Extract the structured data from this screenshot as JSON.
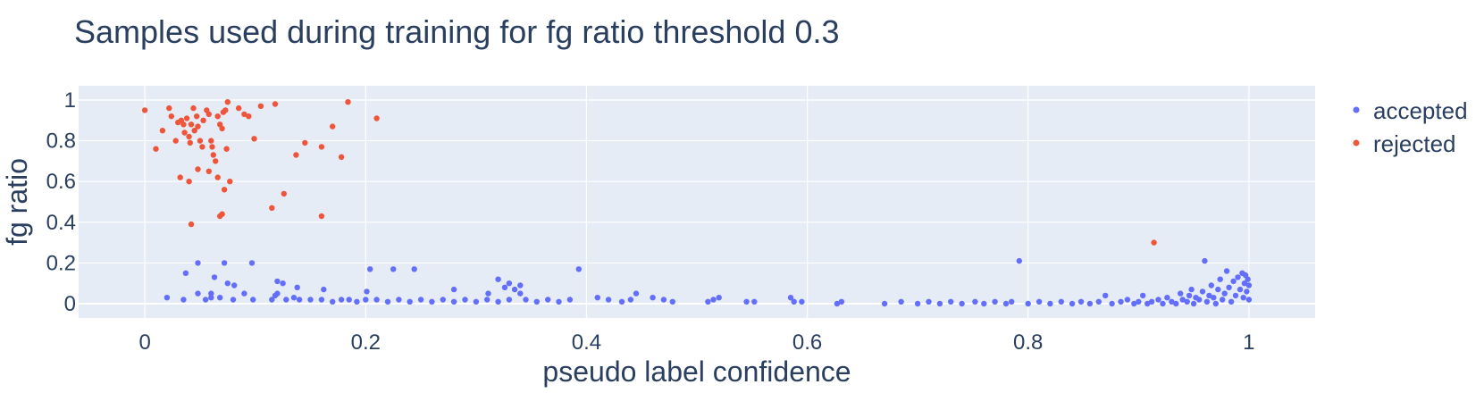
{
  "chart_data": {
    "type": "scatter",
    "title": "Samples used during training for fg ratio threshold 0.3",
    "xlabel": "pseudo label confidence",
    "ylabel": "fg ratio",
    "xlim": [
      -0.06,
      1.06
    ],
    "ylim": [
      -0.07,
      1.07
    ],
    "x_ticks": [
      0,
      0.2,
      0.4,
      0.6,
      0.8,
      1
    ],
    "x_tick_labels": [
      "0",
      "0.2",
      "0.4",
      "0.6",
      "0.8",
      "1"
    ],
    "y_ticks": [
      0,
      0.2,
      0.4,
      0.6,
      0.8,
      1
    ],
    "y_tick_labels": [
      "0",
      "0.2",
      "0.4",
      "0.6",
      "0.8",
      "1"
    ],
    "grid": true,
    "legend_position": "top-right",
    "plot_background": "#e5ecf6",
    "series": [
      {
        "name": "accepted",
        "color": "#636efa",
        "points": [
          [
            0.048,
            0.2
          ],
          [
            0.072,
            0.2
          ],
          [
            0.097,
            0.2
          ],
          [
            0.204,
            0.17
          ],
          [
            0.225,
            0.17
          ],
          [
            0.244,
            0.17
          ],
          [
            0.393,
            0.17
          ],
          [
            0.037,
            0.15
          ],
          [
            0.063,
            0.13
          ],
          [
            0.075,
            0.1
          ],
          [
            0.081,
            0.09
          ],
          [
            0.12,
            0.11
          ],
          [
            0.125,
            0.1
          ],
          [
            0.138,
            0.08
          ],
          [
            0.162,
            0.07
          ],
          [
            0.201,
            0.06
          ],
          [
            0.048,
            0.05
          ],
          [
            0.06,
            0.05
          ],
          [
            0.09,
            0.05
          ],
          [
            0.12,
            0.05
          ],
          [
            0.28,
            0.07
          ],
          [
            0.32,
            0.12
          ],
          [
            0.33,
            0.1
          ],
          [
            0.34,
            0.09
          ],
          [
            0.326,
            0.08
          ],
          [
            0.335,
            0.07
          ],
          [
            0.311,
            0.05
          ],
          [
            0.34,
            0.05
          ],
          [
            0.445,
            0.05
          ],
          [
            0.02,
            0.03
          ],
          [
            0.035,
            0.02
          ],
          [
            0.055,
            0.02
          ],
          [
            0.06,
            0.03
          ],
          [
            0.068,
            0.03
          ],
          [
            0.08,
            0.02
          ],
          [
            0.098,
            0.02
          ],
          [
            0.115,
            0.02
          ],
          [
            0.118,
            0.04
          ],
          [
            0.128,
            0.02
          ],
          [
            0.135,
            0.03
          ],
          [
            0.14,
            0.02
          ],
          [
            0.15,
            0.02
          ],
          [
            0.16,
            0.02
          ],
          [
            0.17,
            0.01
          ],
          [
            0.178,
            0.02
          ],
          [
            0.185,
            0.02
          ],
          [
            0.192,
            0.01
          ],
          [
            0.2,
            0.02
          ],
          [
            0.21,
            0.02
          ],
          [
            0.22,
            0.01
          ],
          [
            0.23,
            0.02
          ],
          [
            0.24,
            0.01
          ],
          [
            0.25,
            0.02
          ],
          [
            0.26,
            0.01
          ],
          [
            0.27,
            0.02
          ],
          [
            0.28,
            0.01
          ],
          [
            0.29,
            0.02
          ],
          [
            0.3,
            0.01
          ],
          [
            0.31,
            0.02
          ],
          [
            0.32,
            0.01
          ],
          [
            0.33,
            0.02
          ],
          [
            0.345,
            0.02
          ],
          [
            0.355,
            0.01
          ],
          [
            0.365,
            0.02
          ],
          [
            0.375,
            0.01
          ],
          [
            0.385,
            0.02
          ],
          [
            0.41,
            0.03
          ],
          [
            0.42,
            0.02
          ],
          [
            0.432,
            0.01
          ],
          [
            0.44,
            0.02
          ],
          [
            0.46,
            0.03
          ],
          [
            0.47,
            0.02
          ],
          [
            0.478,
            0.01
          ],
          [
            0.51,
            0.01
          ],
          [
            0.515,
            0.02
          ],
          [
            0.52,
            0.03
          ],
          [
            0.545,
            0.01
          ],
          [
            0.552,
            0.01
          ],
          [
            0.585,
            0.03
          ],
          [
            0.588,
            0.01
          ],
          [
            0.595,
            0.01
          ],
          [
            0.627,
            0.0
          ],
          [
            0.631,
            0.01
          ],
          [
            0.67,
            0.0
          ],
          [
            0.685,
            0.01
          ],
          [
            0.7,
            0.0
          ],
          [
            0.71,
            0.01
          ],
          [
            0.72,
            0.0
          ],
          [
            0.73,
            0.01
          ],
          [
            0.74,
            0.0
          ],
          [
            0.752,
            0.01
          ],
          [
            0.76,
            0.0
          ],
          [
            0.77,
            0.01
          ],
          [
            0.78,
            0.0
          ],
          [
            0.785,
            0.01
          ],
          [
            0.792,
            0.21
          ],
          [
            0.8,
            0.0
          ],
          [
            0.81,
            0.01
          ],
          [
            0.82,
            0.0
          ],
          [
            0.83,
            0.01
          ],
          [
            0.84,
            0.0
          ],
          [
            0.848,
            0.01
          ],
          [
            0.856,
            0.0
          ],
          [
            0.864,
            0.01
          ],
          [
            0.87,
            0.04
          ],
          [
            0.876,
            0.0
          ],
          [
            0.884,
            0.01
          ],
          [
            0.89,
            0.02
          ],
          [
            0.896,
            0.0
          ],
          [
            0.9,
            0.01
          ],
          [
            0.904,
            0.04
          ],
          [
            0.908,
            0.0
          ],
          [
            0.912,
            0.01
          ],
          [
            0.918,
            0.02
          ],
          [
            0.922,
            0.0
          ],
          [
            0.926,
            0.03
          ],
          [
            0.93,
            0.01
          ],
          [
            0.934,
            0.0
          ],
          [
            0.938,
            0.05
          ],
          [
            0.94,
            0.02
          ],
          [
            0.944,
            0.01
          ],
          [
            0.946,
            0.04
          ],
          [
            0.948,
            0.07
          ],
          [
            0.95,
            0.0
          ],
          [
            0.952,
            0.03
          ],
          [
            0.955,
            0.02
          ],
          [
            0.958,
            0.06
          ],
          [
            0.96,
            0.21
          ],
          [
            0.962,
            0.01
          ],
          [
            0.964,
            0.04
          ],
          [
            0.966,
            0.09
          ],
          [
            0.968,
            0.03
          ],
          [
            0.97,
            0.0
          ],
          [
            0.972,
            0.07
          ],
          [
            0.974,
            0.12
          ],
          [
            0.976,
            0.02
          ],
          [
            0.978,
            0.05
          ],
          [
            0.98,
            0.16
          ],
          [
            0.982,
            0.08
          ],
          [
            0.984,
            0.01
          ],
          [
            0.986,
            0.11
          ],
          [
            0.988,
            0.04
          ],
          [
            0.99,
            0.13
          ],
          [
            0.992,
            0.07
          ],
          [
            0.994,
            0.15
          ],
          [
            0.995,
            0.03
          ],
          [
            0.996,
            0.1
          ],
          [
            0.997,
            0.14
          ],
          [
            0.998,
            0.06
          ],
          [
            0.999,
            0.12
          ],
          [
            1.0,
            0.09
          ],
          [
            1.0,
            0.02
          ]
        ]
      },
      {
        "name": "rejected",
        "color": "#ef553b",
        "points": [
          [
            0.0,
            0.95
          ],
          [
            0.01,
            0.76
          ],
          [
            0.016,
            0.85
          ],
          [
            0.022,
            0.96
          ],
          [
            0.024,
            0.92
          ],
          [
            0.028,
            0.8
          ],
          [
            0.03,
            0.89
          ],
          [
            0.033,
            0.9
          ],
          [
            0.035,
            0.88
          ],
          [
            0.036,
            0.84
          ],
          [
            0.038,
            0.91
          ],
          [
            0.04,
            0.82
          ],
          [
            0.041,
            0.79
          ],
          [
            0.042,
            0.88
          ],
          [
            0.044,
            0.96
          ],
          [
            0.045,
            0.85
          ],
          [
            0.047,
            0.92
          ],
          [
            0.048,
            0.87
          ],
          [
            0.05,
            0.8
          ],
          [
            0.052,
            0.77
          ],
          [
            0.053,
            0.9
          ],
          [
            0.056,
            0.95
          ],
          [
            0.058,
            0.93
          ],
          [
            0.06,
            0.8
          ],
          [
            0.061,
            0.77
          ],
          [
            0.062,
            0.73
          ],
          [
            0.064,
            0.7
          ],
          [
            0.066,
            0.92
          ],
          [
            0.068,
            0.88
          ],
          [
            0.07,
            0.86
          ],
          [
            0.071,
            0.94
          ],
          [
            0.073,
            0.95
          ],
          [
            0.075,
            0.99
          ],
          [
            0.074,
            0.76
          ],
          [
            0.077,
            0.6
          ],
          [
            0.085,
            0.96
          ],
          [
            0.09,
            0.93
          ],
          [
            0.094,
            0.92
          ],
          [
            0.099,
            0.81
          ],
          [
            0.105,
            0.97
          ],
          [
            0.118,
            0.98
          ],
          [
            0.137,
            0.73
          ],
          [
            0.145,
            0.79
          ],
          [
            0.16,
            0.77
          ],
          [
            0.17,
            0.87
          ],
          [
            0.178,
            0.72
          ],
          [
            0.184,
            0.99
          ],
          [
            0.21,
            0.91
          ],
          [
            0.032,
            0.62
          ],
          [
            0.04,
            0.6
          ],
          [
            0.048,
            0.66
          ],
          [
            0.058,
            0.65
          ],
          [
            0.066,
            0.62
          ],
          [
            0.072,
            0.56
          ],
          [
            0.042,
            0.39
          ],
          [
            0.068,
            0.43
          ],
          [
            0.07,
            0.44
          ],
          [
            0.115,
            0.47
          ],
          [
            0.126,
            0.54
          ],
          [
            0.16,
            0.43
          ],
          [
            0.914,
            0.3
          ]
        ]
      }
    ]
  }
}
